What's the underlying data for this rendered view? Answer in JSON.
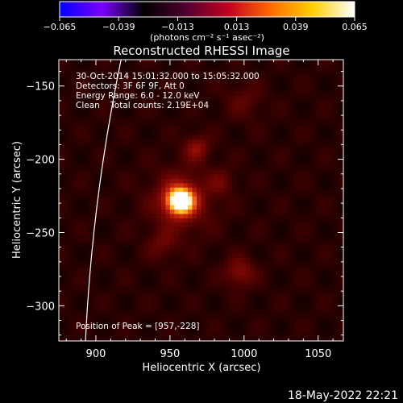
{
  "colorbar": {
    "tick_labels": [
      "−0.065",
      "−0.039",
      "−0.013",
      "0.013",
      "0.039",
      "0.065"
    ],
    "tick_values": [
      -0.065,
      -0.039,
      -0.013,
      0.013,
      0.039,
      0.065
    ],
    "units_label": "(photons cm⁻² s⁻¹ asec⁻²)",
    "range": [
      -0.065,
      0.065
    ],
    "stops": [
      "#0000ff",
      "#7a00ff",
      "#000000",
      "#500030",
      "#c20020",
      "#ff6a00",
      "#ffd000",
      "#ffffff"
    ]
  },
  "chart_data": {
    "type": "heatmap",
    "title": "Reconstructed RHESSI Image",
    "xlabel": "Heliocentric X (arcsec)",
    "ylabel": "Heliocentric Y (arcsec)",
    "xlim": [
      875,
      1067
    ],
    "ylim": [
      -324,
      -132
    ],
    "x_ticks": [
      900,
      950,
      1000,
      1050
    ],
    "y_ticks": [
      -150,
      -200,
      -250,
      -300
    ],
    "annotations": [
      "30-Oct-2014 15:01:32.000 to 15:05:32.000",
      "Detectors: 3F 6F 9F, Att 0",
      "Energy Range: 6.0 - 12.0 keV",
      "Clean    Total counts: 2.19E+04"
    ],
    "peak_label": "Position of Peak = [957,-228]",
    "peak": {
      "x": 957,
      "y": -228
    },
    "sources": [
      {
        "x": 957,
        "y": -228,
        "sigma": 6.5,
        "amp": 0.065
      },
      {
        "x": 958,
        "y": -228,
        "sigma": 15,
        "amp": 0.016
      },
      {
        "x": 968,
        "y": -192,
        "sigma": 6,
        "amp": 0.017
      },
      {
        "x": 997,
        "y": -277,
        "sigma": 7,
        "amp": 0.016
      },
      {
        "x": 945,
        "y": -258,
        "sigma": 7,
        "amp": 0.01
      },
      {
        "x": 985,
        "y": -215,
        "sigma": 6,
        "amp": 0.009
      },
      {
        "x": 1000,
        "y": -160,
        "sigma": 9,
        "amp": 0.008
      }
    ],
    "background_level": 0.009,
    "limb_curve": [
      [
        917,
        -132
      ],
      [
        893,
        -324
      ]
    ]
  },
  "footer": {
    "date": "18-May-2022 22:21"
  }
}
